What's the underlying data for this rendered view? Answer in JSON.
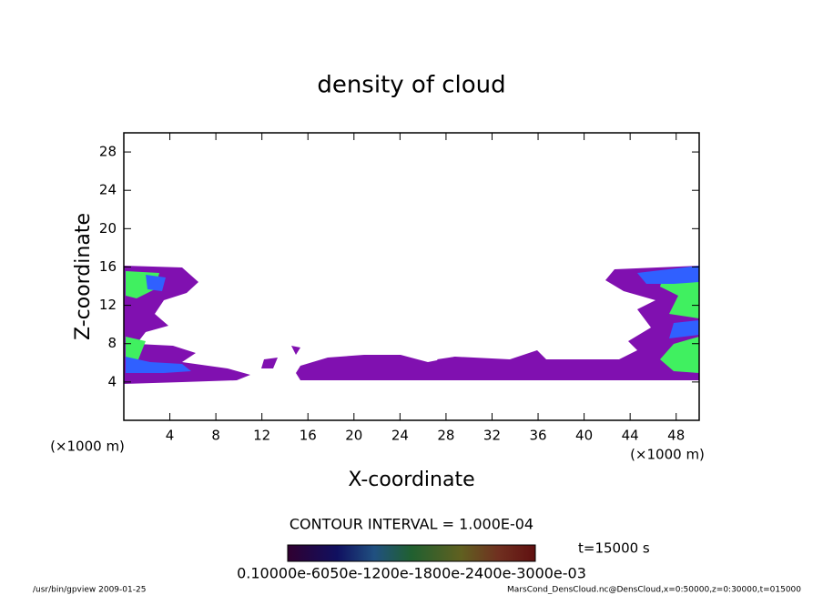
{
  "chart_data": {
    "type": "contour",
    "title": "density of cloud",
    "x_label": "X-coordinate",
    "y_label": "Z-coordinate",
    "x_unit_left": "(×1000 m)",
    "x_unit_right": "(×1000 m)",
    "xlim": [
      0,
      50
    ],
    "xticks": [
      4,
      8,
      12,
      16,
      20,
      24,
      28,
      32,
      36,
      40,
      44,
      48
    ],
    "ylim": [
      0,
      30
    ],
    "yticks": [
      4,
      8,
      12,
      16,
      20,
      24,
      28
    ],
    "contour_interval": "CONTOUR INTERVAL = 1.000E-04",
    "time": "t=15000 s",
    "colorbar_labels": "0.10000e-6050e-1200e-1800e-2400e-3000e-03",
    "footer_left": "/usr/bin/gpview   2009-01-25",
    "footer_right": "MarsCond_DensCloud.nc@DensCloud,x=0:50000,z=0:30000,t=015000"
  }
}
